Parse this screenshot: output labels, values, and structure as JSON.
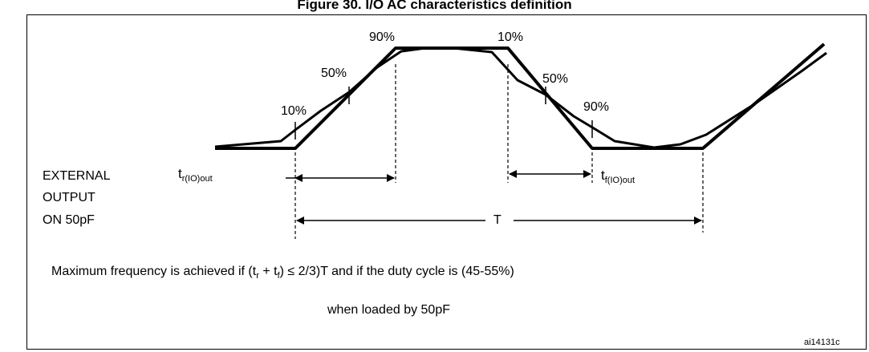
{
  "figure": {
    "title": "Figure 30. I/O AC characteristics definition",
    "ref_code": "ai14131c"
  },
  "levels": {
    "rise_10": "10%",
    "rise_50": "50%",
    "rise_90": "90%",
    "fall_10": "10%",
    "fall_50": "50%",
    "fall_90": "90%"
  },
  "labels": {
    "external_line1": "EXTERNAL",
    "external_line2": "OUTPUT",
    "external_line3": "ON 50pF",
    "t_rise_main": "t",
    "t_rise_sub": "r(IO)out",
    "t_fall_main": "t",
    "t_fall_sub": "f(IO)out",
    "period": "T"
  },
  "notes": {
    "line1_a": "Maximum frequency is achieved if (t",
    "line1_sub_r": "r",
    "line1_b": " + t",
    "line1_sub_f": "f",
    "line1_c": ") ≤ 2/3)T and if the duty cycle is (45-55%)",
    "line2": "when loaded by 50pF"
  }
}
